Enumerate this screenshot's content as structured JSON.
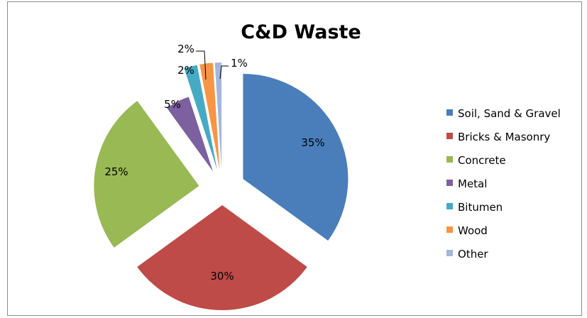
{
  "chart_data": {
    "type": "pie",
    "title": "C&D Waste",
    "slices": [
      {
        "name": "Soil, Sand & Gravel",
        "value": 35,
        "label": "35%",
        "color": "#4a7ebb"
      },
      {
        "name": "Bricks & Masonry",
        "value": 30,
        "label": "30%",
        "color": "#be4b48"
      },
      {
        "name": "Concrete",
        "value": 25,
        "label": "25%",
        "color": "#98b954"
      },
      {
        "name": "Metal",
        "value": 5,
        "label": "5%",
        "color": "#7d60a0"
      },
      {
        "name": "Bitumen",
        "value": 2,
        "label": "2%",
        "color": "#46aac5"
      },
      {
        "name": "Wood",
        "value": 2,
        "label": "2%",
        "color": "#f69545"
      },
      {
        "name": "Other",
        "value": 1,
        "label": "1%",
        "color": "#a5b6dc"
      }
    ],
    "exploded": true,
    "legend": "right"
  }
}
